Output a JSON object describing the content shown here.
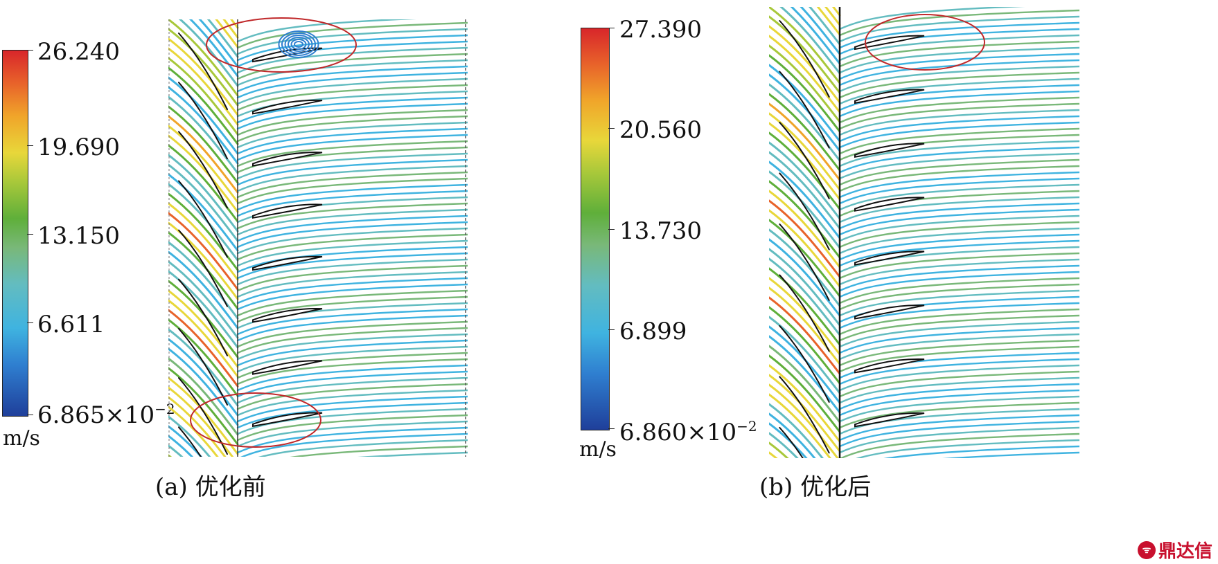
{
  "panels": [
    {
      "id": "a",
      "caption": "(a) 优化前",
      "colorbar": {
        "unit": "m/s",
        "ticks": [
          "26.240",
          "19.690",
          "13.150",
          "6.611",
          "6.865×10"
        ],
        "min_exponent": "−2"
      }
    },
    {
      "id": "b",
      "caption": "(b) 优化后",
      "colorbar": {
        "unit": "m/s",
        "ticks": [
          "27.390",
          "20.560",
          "13.730",
          "6.899",
          "6.860×10"
        ],
        "min_exponent": "−2"
      }
    }
  ],
  "watermark": {
    "text": "鼎达信",
    "color": "#c8102e"
  },
  "colors": {
    "colormap": [
      "#1f3f9a",
      "#2f7fd0",
      "#3fb3e0",
      "#63bcc0",
      "#79b879",
      "#5faf3a",
      "#a8c83a",
      "#e8d73a",
      "#f0a52a",
      "#e8632a",
      "#d8262a"
    ],
    "highlight_ellipse": "#c0282a"
  }
}
